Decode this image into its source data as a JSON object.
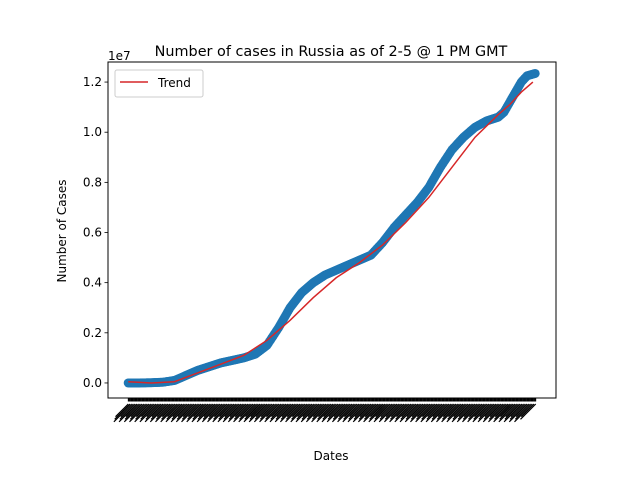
{
  "chart_data": {
    "type": "scatter",
    "title": "Number of cases in Russia as of 2-5 @ 1 PM GMT",
    "xlabel": "Dates",
    "ylabel": "Number of Cases",
    "y_scale_note": "1e7",
    "ylim": [
      -0.06,
      1.28
    ],
    "yticks": [
      0.0,
      0.2,
      0.4,
      0.6,
      0.8,
      1.0,
      1.2
    ],
    "ytick_labels": [
      "0.0",
      "0.2",
      "0.4",
      "0.6",
      "0.8",
      "1.0",
      "1.2"
    ],
    "x_count": 706,
    "grid": false,
    "legend": {
      "position": "top-left",
      "entries": [
        "Trend"
      ]
    },
    "series": [
      {
        "name": "",
        "style": "scatter",
        "color": "#1f77b4",
        "points": [
          [
            0,
            0.0
          ],
          [
            20,
            0.0
          ],
          [
            40,
            0.001
          ],
          [
            60,
            0.003
          ],
          [
            80,
            0.01
          ],
          [
            100,
            0.03
          ],
          [
            120,
            0.05
          ],
          [
            140,
            0.065
          ],
          [
            160,
            0.08
          ],
          [
            180,
            0.09
          ],
          [
            200,
            0.1
          ],
          [
            220,
            0.115
          ],
          [
            240,
            0.15
          ],
          [
            260,
            0.22
          ],
          [
            280,
            0.3
          ],
          [
            300,
            0.36
          ],
          [
            320,
            0.4
          ],
          [
            340,
            0.43
          ],
          [
            360,
            0.45
          ],
          [
            380,
            0.47
          ],
          [
            400,
            0.49
          ],
          [
            420,
            0.51
          ],
          [
            440,
            0.56
          ],
          [
            460,
            0.62
          ],
          [
            480,
            0.67
          ],
          [
            500,
            0.72
          ],
          [
            520,
            0.78
          ],
          [
            540,
            0.86
          ],
          [
            560,
            0.93
          ],
          [
            580,
            0.98
          ],
          [
            600,
            1.02
          ],
          [
            620,
            1.045
          ],
          [
            640,
            1.06
          ],
          [
            650,
            1.08
          ],
          [
            660,
            1.12
          ],
          [
            670,
            1.16
          ],
          [
            680,
            1.2
          ],
          [
            690,
            1.225
          ],
          [
            705,
            1.235
          ]
        ]
      },
      {
        "name": "Trend",
        "style": "line",
        "color": "#d62728",
        "points": [
          [
            0,
            0.005
          ],
          [
            40,
            0.0
          ],
          [
            80,
            0.005
          ],
          [
            120,
            0.04
          ],
          [
            160,
            0.075
          ],
          [
            200,
            0.11
          ],
          [
            240,
            0.17
          ],
          [
            280,
            0.25
          ],
          [
            320,
            0.34
          ],
          [
            360,
            0.42
          ],
          [
            400,
            0.48
          ],
          [
            440,
            0.55
          ],
          [
            480,
            0.64
          ],
          [
            520,
            0.74
          ],
          [
            560,
            0.86
          ],
          [
            600,
            0.98
          ],
          [
            640,
            1.07
          ],
          [
            660,
            1.11
          ],
          [
            680,
            1.16
          ],
          [
            700,
            1.2
          ]
        ]
      }
    ]
  }
}
